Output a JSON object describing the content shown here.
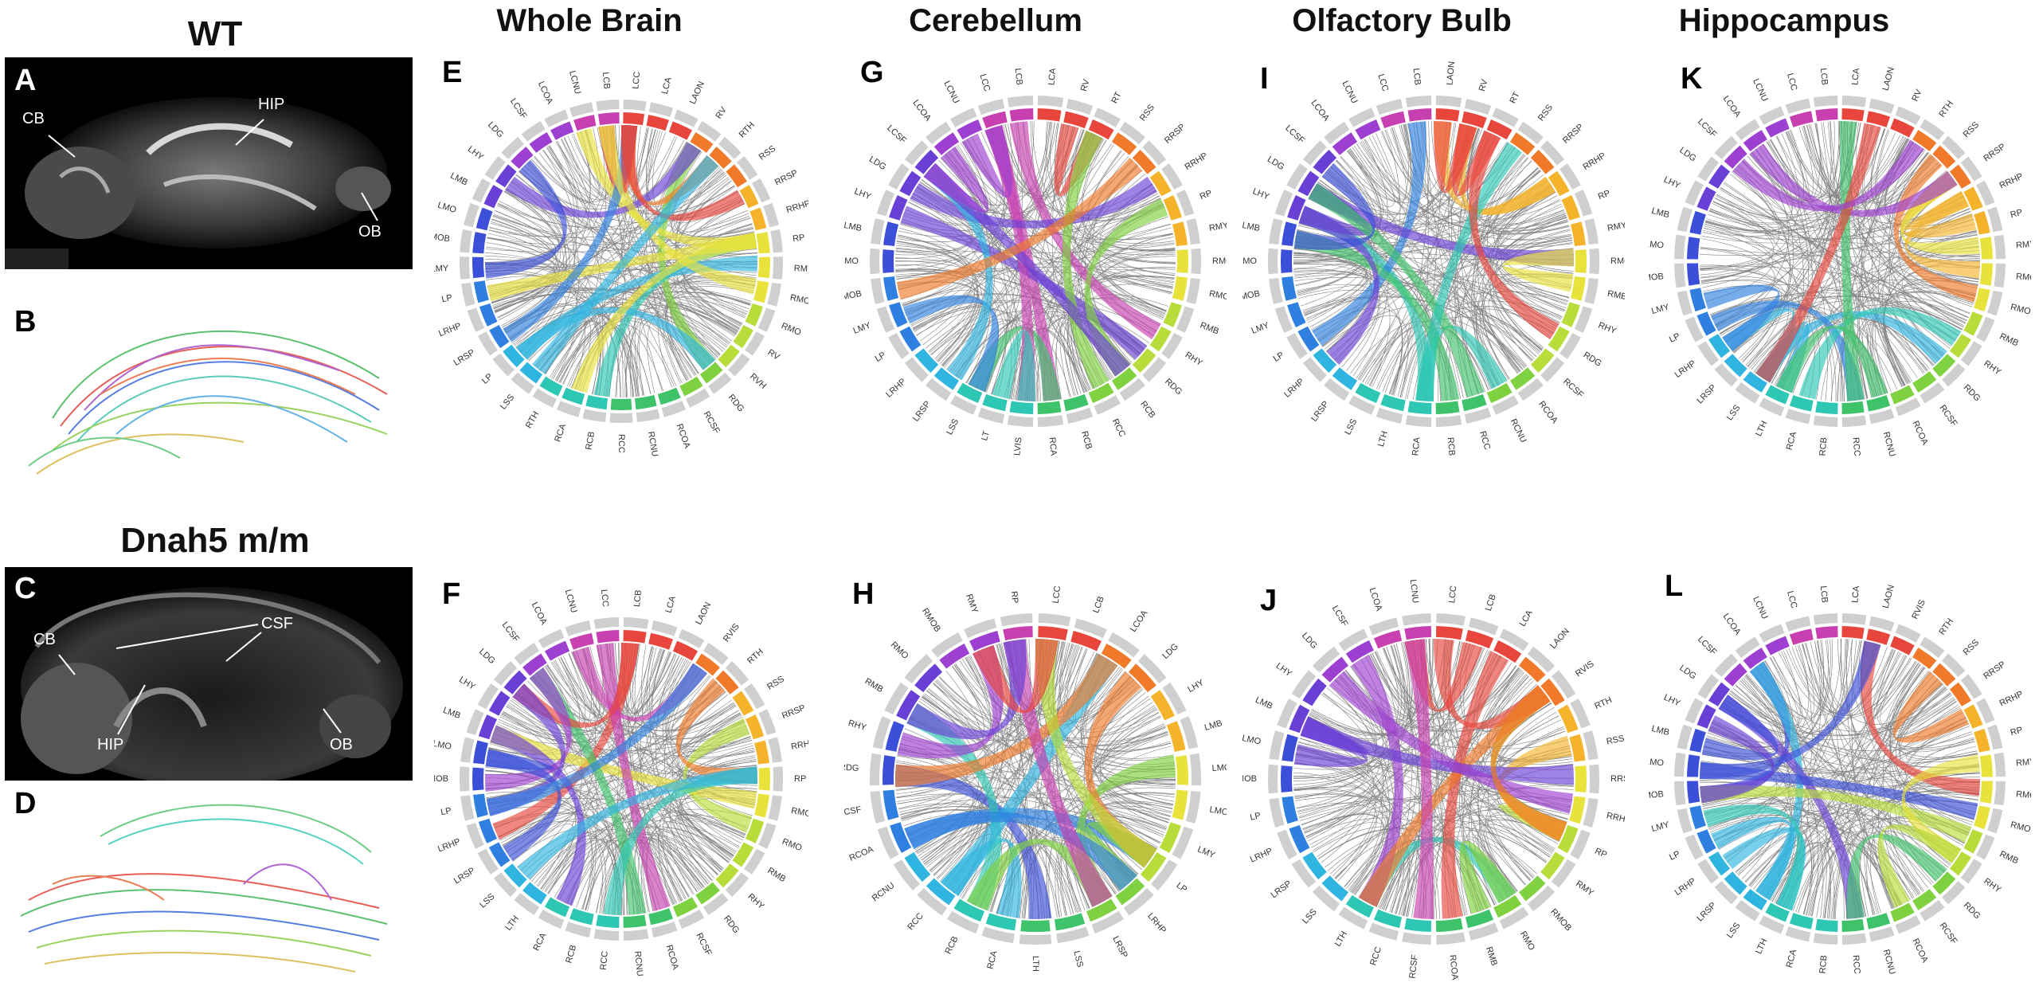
{
  "group_titles": {
    "wt": "WT",
    "mutant": "Dnah5 m/m"
  },
  "column_titles": [
    "Whole Brain",
    "Cerebellum",
    "Olfactory Bulb",
    "Hippocampus"
  ],
  "panel_letters": {
    "A": "A",
    "B": "B",
    "C": "C",
    "D": "D",
    "E": "E",
    "F": "F",
    "G": "G",
    "H": "H",
    "I": "I",
    "J": "J",
    "K": "K",
    "L": "L"
  },
  "mri_annotations": {
    "A": {
      "cb": "CB",
      "hip": "HIP",
      "ob": "OB"
    },
    "C": {
      "cb": "CB",
      "csf": "CSF",
      "hip": "HIP",
      "ob": "OB"
    }
  },
  "ring_labels": {
    "E": [
      "LCC",
      "LCA",
      "LAON",
      "RV",
      "RTH",
      "RSS",
      "RRSP",
      "RRHP",
      "RP",
      "RMY",
      "RMOB",
      "RMO",
      "RV",
      "RVH",
      "RDG",
      "RCSF",
      "RCOA",
      "RCNU",
      "RCC",
      "RCB",
      "RCA",
      "RTH",
      "LSS",
      "LP",
      "LRSP",
      "LRHP",
      "LP",
      "LMY",
      "LMOB",
      "LMO",
      "LMB",
      "LHY",
      "LDG",
      "LCSF",
      "LCOA",
      "LCNU",
      "LCB"
    ],
    "F": [
      "LCB",
      "LCA",
      "LAON",
      "RVIS",
      "RTH",
      "RSS",
      "RRSP",
      "RRHP",
      "RP",
      "RMOB",
      "RMO",
      "RMB",
      "RHY",
      "RDG",
      "RCSF",
      "RCOA",
      "RCNU",
      "RCC",
      "RCB",
      "RCA",
      "LTH",
      "LSS",
      "LRSP",
      "LRHP",
      "LP",
      "LMOB",
      "LMO",
      "LMB",
      "LHY",
      "LDG",
      "LCSF",
      "LCOA",
      "LCNU",
      "LCC"
    ],
    "G": [
      "LCA",
      "RV",
      "RT",
      "RSS",
      "RRSP",
      "RRHP",
      "RP",
      "RMY",
      "RMOB",
      "RMO",
      "RMB",
      "RHY",
      "RDG",
      "RCB",
      "RCC",
      "RCB",
      "RCA",
      "LVIS",
      "LT",
      "LSS",
      "LRSP",
      "LRHP",
      "LP",
      "LMY",
      "LMOB",
      "LMO",
      "LMB",
      "LHY",
      "LDG",
      "LCSF",
      "LCOA",
      "LCNU",
      "LCC",
      "LCB"
    ],
    "H": [
      "LCC",
      "LCB",
      "LCOA",
      "LDG",
      "LHY",
      "LMB",
      "LMO",
      "LMOB",
      "LMY",
      "LP",
      "LRHP",
      "LRSP",
      "LSS",
      "LTH",
      "RCA",
      "RCB",
      "RCC",
      "RCNU",
      "RCOA",
      "RCSF",
      "RDG",
      "RHY",
      "RMB",
      "RMO",
      "RMOB",
      "RMY",
      "RP"
    ],
    "I": [
      "LAON",
      "RV",
      "RT",
      "RSS",
      "RRSP",
      "RRHP",
      "RP",
      "RMY",
      "RMOB",
      "RMB",
      "RHY",
      "RDG",
      "RCSF",
      "RCOA",
      "RCNU",
      "RCC",
      "RCB",
      "RCA",
      "LTH",
      "LSS",
      "LRSP",
      "LRHP",
      "LP",
      "LMY",
      "LMOB",
      "LMO",
      "LMB",
      "LHY",
      "LDG",
      "LCSF",
      "LCOA",
      "LCNU",
      "LCC",
      "LCB"
    ],
    "J": [
      "LCC",
      "LCB",
      "LCA",
      "LAON",
      "RVIS",
      "RTH",
      "RSS",
      "RRSP",
      "RRHP",
      "RP",
      "RMY",
      "RMOB",
      "RMO",
      "RMB",
      "RCOA",
      "RCSF",
      "RCC",
      "LTH",
      "LSS",
      "LRSP",
      "LRHP",
      "LP",
      "LMOB",
      "LMO",
      "LMB",
      "LHY",
      "LDG",
      "LCSF",
      "LCOA",
      "LCNU"
    ],
    "K": [
      "LCA",
      "LAON",
      "RV",
      "RTH",
      "RSS",
      "RRSP",
      "RRHP",
      "RP",
      "RMY",
      "RMOB",
      "RMO",
      "RMB",
      "RHY",
      "RDG",
      "RCSF",
      "RCOA",
      "RCNU",
      "RCC",
      "RCB",
      "RCA",
      "LTH",
      "LSS",
      "LRSP",
      "LRHP",
      "LP",
      "LMY",
      "LMOB",
      "LMO",
      "LMB",
      "LHY",
      "LDG",
      "LCSF",
      "LCOA",
      "LCNU",
      "LCC",
      "LCB"
    ],
    "L": [
      "LCA",
      "LAON",
      "RVIS",
      "RTH",
      "RSS",
      "RRSP",
      "RRHP",
      "RP",
      "RMY",
      "RMOB",
      "RMO",
      "RMB",
      "RHY",
      "RDG",
      "RCSF",
      "RCOA",
      "RCNU",
      "RCC",
      "RCB",
      "RCA",
      "LTH",
      "LSS",
      "LRSP",
      "LRHP",
      "LP",
      "LMY",
      "LMOB",
      "LMO",
      "LMB",
      "LHY",
      "LDG",
      "LCSF",
      "LCOA",
      "LCNU",
      "LCC",
      "LCB"
    ]
  },
  "colors": {
    "ring_palette": [
      "#e8453c",
      "#f07a2a",
      "#f5b32c",
      "#e9e23a",
      "#b8dd3b",
      "#7fd13f",
      "#3fc36a",
      "#2dc7b3",
      "#30b5e0",
      "#2e7fe0",
      "#3b4fd8",
      "#6a3fd6",
      "#9d3fd0",
      "#c83fb0"
    ],
    "chord_dark": "#1a1a1a"
  }
}
